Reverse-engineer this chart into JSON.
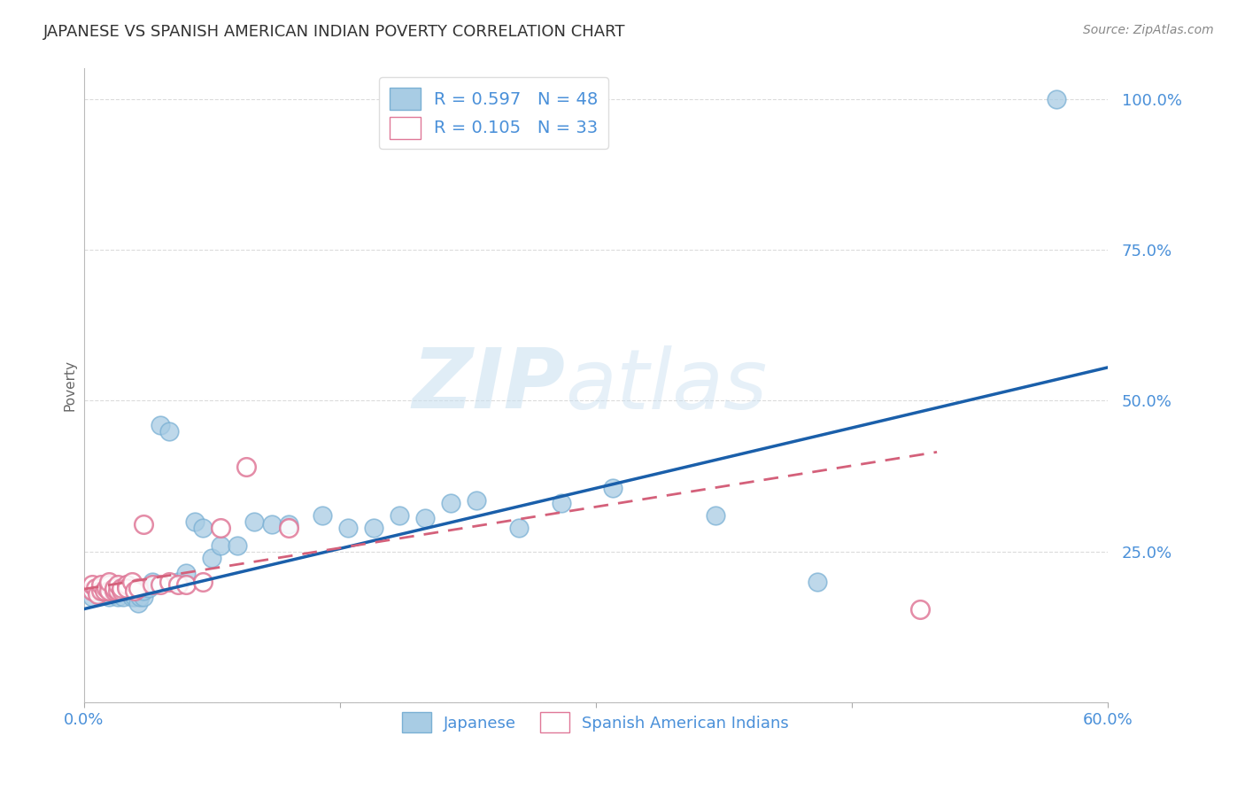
{
  "title": "JAPANESE VS SPANISH AMERICAN INDIAN POVERTY CORRELATION CHART",
  "source": "Source: ZipAtlas.com",
  "xlabel": "",
  "ylabel": "Poverty",
  "watermark": "ZIPatlas",
  "xlim": [
    0.0,
    0.6
  ],
  "ylim": [
    0.0,
    1.05
  ],
  "xticks": [
    0.0,
    0.15,
    0.3,
    0.45,
    0.6
  ],
  "xticklabels": [
    "0.0%",
    "",
    "",
    "",
    "60.0%"
  ],
  "yticks": [
    0.0,
    0.25,
    0.5,
    0.75,
    1.0
  ],
  "yticklabels": [
    "",
    "25.0%",
    "50.0%",
    "75.0%",
    "100.0%"
  ],
  "R_japanese": 0.597,
  "N_japanese": 48,
  "R_spanish": 0.105,
  "N_spanish": 33,
  "japanese_color": "#a8cce4",
  "japanese_edge_color": "#7ab0d4",
  "spanish_color": "#f4a9c0",
  "spanish_edge_color": "#e07898",
  "japanese_line_color": "#1a5faa",
  "spanish_line_color": "#d4607a",
  "grid_color": "#cccccc",
  "title_color": "#333333",
  "tick_label_color": "#4a90d9",
  "japanese_x": [
    0.005,
    0.008,
    0.01,
    0.012,
    0.015,
    0.015,
    0.018,
    0.02,
    0.02,
    0.022,
    0.023,
    0.025,
    0.025,
    0.028,
    0.03,
    0.03,
    0.032,
    0.033,
    0.035,
    0.035,
    0.038,
    0.04,
    0.042,
    0.045,
    0.05,
    0.055,
    0.06,
    0.065,
    0.07,
    0.075,
    0.08,
    0.09,
    0.1,
    0.11,
    0.12,
    0.14,
    0.155,
    0.17,
    0.185,
    0.2,
    0.215,
    0.23,
    0.255,
    0.28,
    0.31,
    0.37,
    0.43,
    0.57
  ],
  "japanese_y": [
    0.175,
    0.185,
    0.18,
    0.19,
    0.175,
    0.195,
    0.18,
    0.175,
    0.185,
    0.19,
    0.175,
    0.185,
    0.195,
    0.175,
    0.175,
    0.185,
    0.165,
    0.175,
    0.175,
    0.185,
    0.19,
    0.2,
    0.195,
    0.46,
    0.45,
    0.2,
    0.215,
    0.3,
    0.29,
    0.24,
    0.26,
    0.26,
    0.3,
    0.295,
    0.295,
    0.31,
    0.29,
    0.29,
    0.31,
    0.305,
    0.33,
    0.335,
    0.29,
    0.33,
    0.355,
    0.31,
    0.2,
    1.0
  ],
  "spanish_x": [
    0.005,
    0.005,
    0.007,
    0.008,
    0.01,
    0.01,
    0.012,
    0.013,
    0.015,
    0.015,
    0.015,
    0.018,
    0.018,
    0.02,
    0.02,
    0.022,
    0.022,
    0.025,
    0.025,
    0.028,
    0.03,
    0.032,
    0.035,
    0.04,
    0.045,
    0.05,
    0.055,
    0.06,
    0.07,
    0.08,
    0.095,
    0.12,
    0.49
  ],
  "spanish_y": [
    0.185,
    0.195,
    0.19,
    0.18,
    0.185,
    0.195,
    0.185,
    0.19,
    0.195,
    0.185,
    0.2,
    0.185,
    0.19,
    0.185,
    0.195,
    0.185,
    0.19,
    0.195,
    0.19,
    0.2,
    0.185,
    0.19,
    0.295,
    0.195,
    0.195,
    0.2,
    0.195,
    0.195,
    0.2,
    0.29,
    0.39,
    0.29,
    0.155
  ],
  "jap_line_x": [
    0.0,
    0.6
  ],
  "jap_line_y": [
    0.155,
    0.555
  ],
  "span_line_x": [
    0.0,
    0.5
  ],
  "span_line_y": [
    0.188,
    0.415
  ]
}
